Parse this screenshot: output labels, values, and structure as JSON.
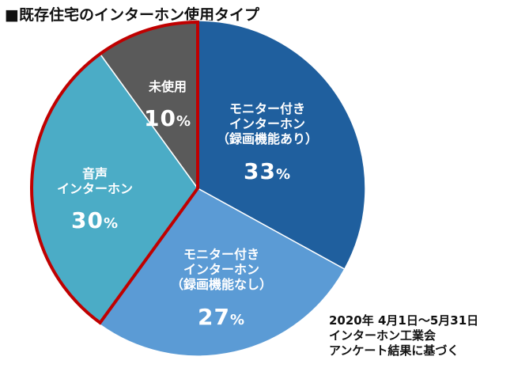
{
  "title": "■既存住宅のインターホン使用タイプ",
  "chart_data": {
    "type": "pie",
    "start_angle_deg": 0,
    "direction": "clockwise",
    "slices": [
      {
        "label_lines": [
          "モニター付き",
          "インターホン",
          "（録画機能あり）"
        ],
        "value": 33,
        "percent_text": "33",
        "color": "#1f5f9e",
        "text_color": "#ffffff"
      },
      {
        "label_lines": [
          "モニター付き",
          "インターホン",
          "（録画機能なし）"
        ],
        "value": 27,
        "percent_text": "27",
        "color": "#5b9bd5",
        "text_color": "#ffffff"
      },
      {
        "label_lines": [
          "音声",
          "インターホン"
        ],
        "value": 30,
        "percent_text": "30",
        "color": "#4bacc6",
        "text_color": "#ffffff"
      },
      {
        "label_lines": [
          "未使用"
        ],
        "value": 10,
        "percent_text": "10",
        "color": "#5a5a5a",
        "text_color": "#ffffff"
      }
    ],
    "percent_suffix": "%",
    "highlight_outline": {
      "color": "#c00000",
      "slices": [
        2,
        3
      ]
    }
  },
  "source_note": {
    "lines": [
      "2020年 4月1日～5月31日",
      "インターホン工業会",
      "アンケート結果に基づく"
    ]
  }
}
